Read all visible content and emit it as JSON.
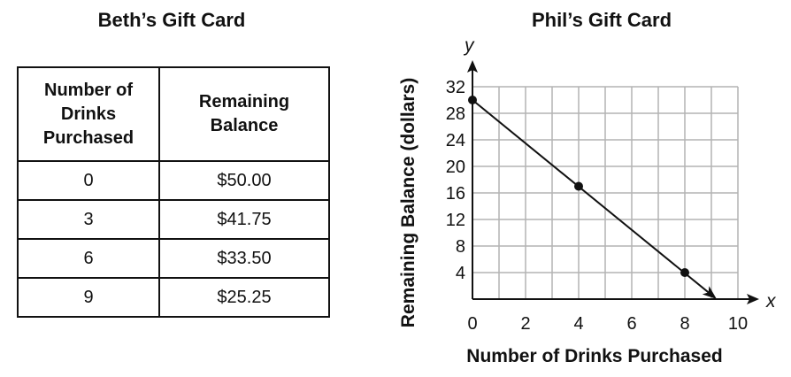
{
  "beth": {
    "title": "Beth’s Gift Card",
    "header_col1_lines": [
      "Number of",
      "Drinks",
      "Purchased"
    ],
    "header_col2_lines": [
      "Remaining",
      "Balance"
    ],
    "rows": [
      [
        "0",
        "$50.00"
      ],
      [
        "3",
        "$41.75"
      ],
      [
        "6",
        "$33.50"
      ],
      [
        "9",
        "$25.25"
      ]
    ]
  },
  "chart_data": {
    "type": "line",
    "title": "Phil’s Gift Card",
    "xlabel": "Number of Drinks Purchased",
    "ylabel": "Remaining Balance (dollars)",
    "x_axis_letter": "x",
    "y_axis_letter": "y",
    "xlim": [
      0,
      10
    ],
    "ylim": [
      0,
      32
    ],
    "x_ticks": [
      0,
      2,
      4,
      6,
      8,
      10
    ],
    "y_ticks": [
      4,
      8,
      12,
      16,
      20,
      24,
      28,
      32
    ],
    "grid": true,
    "points": [
      {
        "x": 0,
        "y": 30
      },
      {
        "x": 4,
        "y": 17
      },
      {
        "x": 8,
        "y": 4
      }
    ],
    "line_end": {
      "x": 9.2,
      "y": 0
    }
  }
}
